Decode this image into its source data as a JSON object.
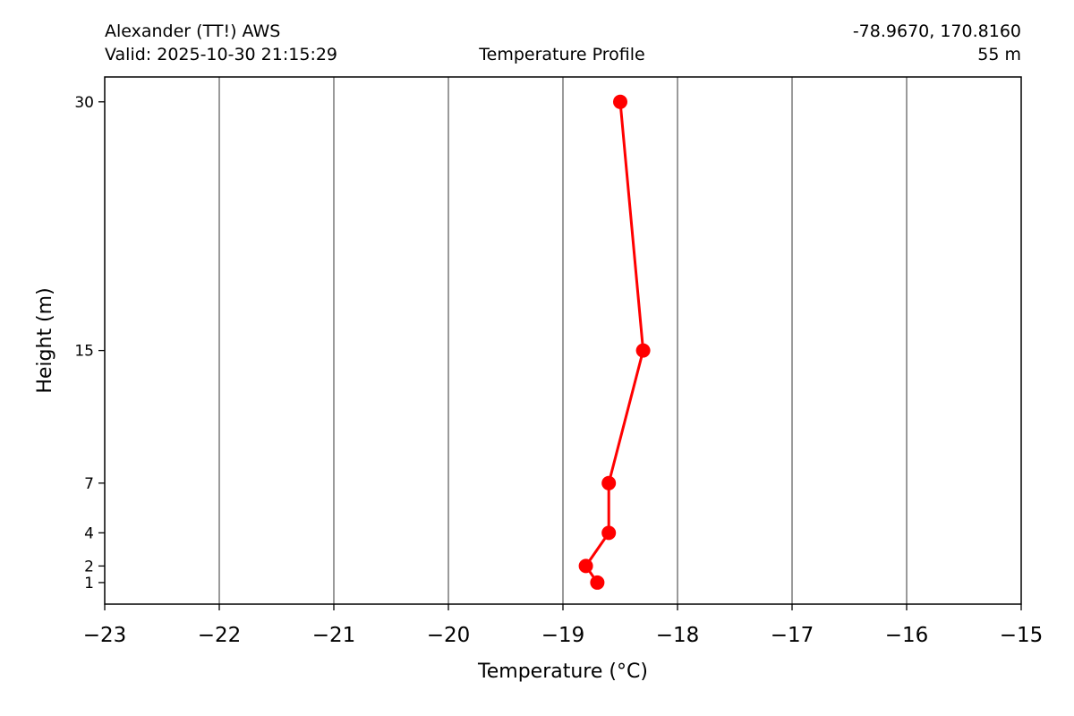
{
  "header": {
    "station": "Alexander (TT!) AWS",
    "valid": "Valid: 2025-10-30 21:15:29",
    "title": "Temperature Profile",
    "coords": "-78.9670, 170.8160",
    "elevation": "55 m"
  },
  "chart_data": {
    "type": "line",
    "title": "Temperature Profile",
    "xlabel": "Temperature (°C)",
    "ylabel": "Height (m)",
    "xlim": [
      -23,
      -15
    ],
    "ylim": [
      -0.3,
      31.5
    ],
    "xticks": [
      -23,
      -22,
      -21,
      -20,
      -19,
      -18,
      -17,
      -16,
      -15
    ],
    "xtick_labels": [
      "−23",
      "−22",
      "−21",
      "−20",
      "−19",
      "−18",
      "−17",
      "−16",
      "−15"
    ],
    "yticks": [
      1,
      2,
      4,
      7,
      15,
      30
    ],
    "ytick_labels": [
      "1",
      "2",
      "4",
      "7",
      "15",
      "30"
    ],
    "grid": "vertical",
    "series": [
      {
        "color": "#ff0000",
        "marker": "circle",
        "points": [
          {
            "height": 1,
            "temperature": -18.7
          },
          {
            "height": 2,
            "temperature": -18.8
          },
          {
            "height": 4,
            "temperature": -18.6
          },
          {
            "height": 7,
            "temperature": -18.6
          },
          {
            "height": 15,
            "temperature": -18.3
          },
          {
            "height": 30,
            "temperature": -18.5
          }
        ]
      }
    ]
  }
}
